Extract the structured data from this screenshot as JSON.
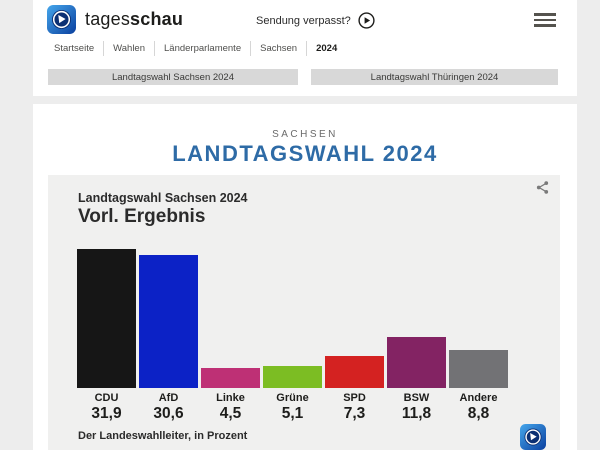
{
  "header": {
    "brand": {
      "text_regular": "tages",
      "text_bold": "schau"
    },
    "sendung_verpasst": "Sendung verpasst?",
    "nav": [
      "Startseite",
      "Wahlen",
      "Länderparlamente",
      "Sachsen",
      "2024"
    ],
    "buttons": [
      "Landtagswahl Sachsen 2024",
      "Landtagswahl Thüringen 2024"
    ]
  },
  "main": {
    "kicker": "SACHSEN",
    "title": "LANDTAGSWAHL 2024"
  },
  "chart_card": {
    "subtitle": "Landtagswahl Sachsen 2024",
    "title": "Vorl. Ergebnis",
    "source": "Der Landeswahlleiter, in Prozent"
  },
  "chart_data": {
    "type": "bar",
    "title": "Vorl. Ergebnis",
    "subtitle": "Landtagswahl Sachsen 2024",
    "categories": [
      "CDU",
      "AfD",
      "Linke",
      "Grüne",
      "SPD",
      "BSW",
      "Andere"
    ],
    "values": [
      31.9,
      30.6,
      4.5,
      5.1,
      7.3,
      11.8,
      8.8
    ],
    "value_labels": [
      "31,9",
      "30,6",
      "4,5",
      "5,1",
      "7,3",
      "11,8",
      "8,8"
    ],
    "colors": [
      "#161616",
      "#0c22c6",
      "#be3075",
      "#7cbd23",
      "#d42221",
      "#832363",
      "#727275"
    ],
    "unit": "Prozent",
    "source": "Der Landeswahlleiter, in Prozent",
    "ylim": [
      0,
      33
    ],
    "grid": false,
    "legend": false
  },
  "colors": {
    "page_bg": "#ededed",
    "panel_bg": "#ffffff",
    "card_bg": "#f0f0ef",
    "title_blue": "#2e6ba6",
    "button_bg": "#d8d8d8",
    "logo_blue_light": "#3fa0e8",
    "logo_blue_dark": "#0a3f9e"
  }
}
